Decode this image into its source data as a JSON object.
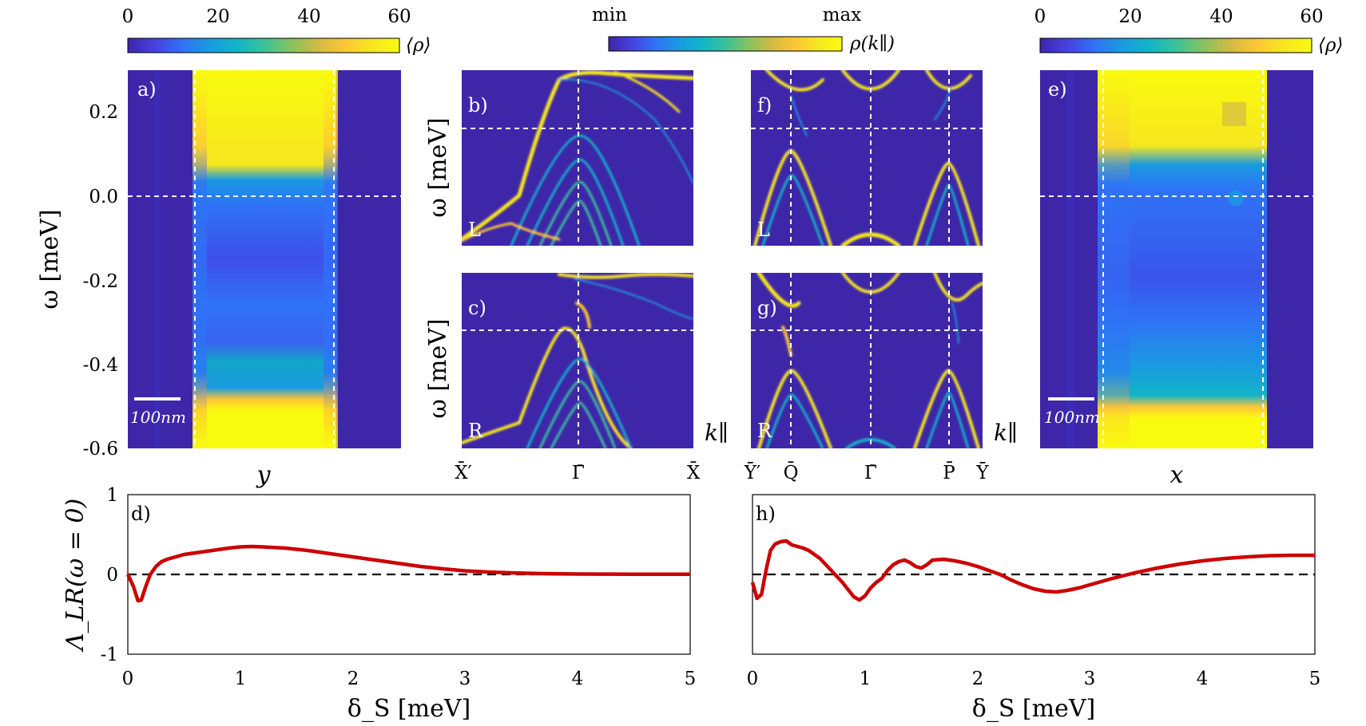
{
  "colors": {
    "parula": [
      "#3e26a8",
      "#4741e0",
      "#2f72f6",
      "#1a9ae0",
      "#12b4c8",
      "#3ac19c",
      "#86c25f",
      "#d2ba43",
      "#fec636",
      "#f6e71f",
      "#f9fb0e"
    ],
    "curve": "#cc0000",
    "guide": "#ffffff",
    "zero_line": "#000000"
  },
  "colorbars": {
    "left": {
      "ticks": [
        "0",
        "20",
        "40",
        "60"
      ],
      "label": "⟨ρ⟩"
    },
    "middle": {
      "min": "min",
      "max": "max",
      "label": "ρ(k∥)"
    },
    "right": {
      "ticks": [
        "0",
        "20",
        "40",
        "60"
      ],
      "label": "⟨ρ⟩"
    }
  },
  "panels": {
    "a": {
      "label": "a)",
      "xlabel": "y",
      "ylabel": "ω [meV]",
      "yticks": [
        "0.2",
        "0.0",
        "-0.2",
        "-0.4",
        "-0.6"
      ],
      "scalebar": "100nm"
    },
    "b": {
      "label": "b)",
      "side": "L",
      "ylabel": "ω [meV]"
    },
    "c": {
      "label": "c)",
      "side": "R",
      "ylabel": "ω [meV]",
      "kpar": "k∥",
      "xticks": [
        "X̄′",
        "Γ̄",
        "X̄"
      ]
    },
    "f": {
      "label": "f)",
      "side": "L"
    },
    "g": {
      "label": "g)",
      "side": "R",
      "kpar": "k∥",
      "xticks": [
        "Ȳ′",
        "Q̄",
        "Γ̄",
        "P̄",
        "Ȳ"
      ]
    },
    "e": {
      "label": "e)",
      "xlabel": "x",
      "scalebar": "100nm"
    },
    "d": {
      "label": "d)",
      "ylabel": "Λ_LR(ω = 0)",
      "xlabel": "δ_S [meV]",
      "yticks": [
        "1",
        "0",
        "-1"
      ],
      "xticks": [
        "0",
        "1",
        "2",
        "3",
        "4",
        "5"
      ]
    },
    "h": {
      "label": "h)",
      "xlabel": "δ_S [meV]",
      "xticks": [
        "0",
        "1",
        "2",
        "3",
        "4",
        "5"
      ]
    }
  },
  "chart_data": [
    {
      "id": "a",
      "type": "heatmap",
      "title": "a)",
      "xlabel": "y",
      "ylabel": "ω [meV]",
      "ylim": [
        -0.6,
        0.28
      ],
      "yticks": [
        0.2,
        0.0,
        -0.2,
        -0.4,
        -0.6
      ],
      "clim": [
        0,
        60
      ],
      "colorbar_label": "⟨ρ⟩",
      "guides": {
        "y_meV": 0.0,
        "x_frac": [
          0.245,
          0.755
        ]
      },
      "description": "local density of states vs y; high (saturated) above ω≈0.16 and below ω≈-0.53 meV within the junction region"
    },
    {
      "id": "b",
      "type": "heatmap",
      "title": "b)",
      "side": "L",
      "xticks": [
        "X̄′",
        "Γ̄",
        "X̄"
      ],
      "ylabel": "ω [meV]",
      "guides": {
        "y_meV": 0.0,
        "k_at": "Γ̄"
      },
      "colorbar": {
        "min": "min",
        "max": "max",
        "label": "ρ(k∥)"
      }
    },
    {
      "id": "c",
      "type": "heatmap",
      "title": "c)",
      "side": "R",
      "xticks": [
        "X̄′",
        "Γ̄",
        "X̄"
      ],
      "xlabel": "k∥",
      "ylabel": "ω [meV]",
      "guides": {
        "y_meV": 0.0,
        "k_at": "Γ̄"
      }
    },
    {
      "id": "f",
      "type": "heatmap",
      "title": "f)",
      "side": "L",
      "xticks": [
        "Ȳ′",
        "Q̄",
        "Γ̄",
        "P̄",
        "Ȳ"
      ],
      "guides": {
        "y_meV": 0.0,
        "k_at": [
          "Q̄",
          "Γ̄",
          "P̄"
        ]
      }
    },
    {
      "id": "g",
      "type": "heatmap",
      "title": "g)",
      "side": "R",
      "xticks": [
        "Ȳ′",
        "Q̄",
        "Γ̄",
        "P̄",
        "Ȳ"
      ],
      "xlabel": "k∥",
      "guides": {
        "y_meV": 0.0,
        "k_at": [
          "Q̄",
          "Γ̄",
          "P̄"
        ]
      }
    },
    {
      "id": "e",
      "type": "heatmap",
      "title": "e)",
      "xlabel": "x",
      "ylim": [
        -0.6,
        0.28
      ],
      "clim": [
        0,
        60
      ],
      "colorbar_label": "⟨ρ⟩",
      "guides": {
        "y_meV": 0.0,
        "x_frac": [
          0.23,
          0.815
        ]
      }
    },
    {
      "id": "d",
      "type": "line",
      "title": "d)",
      "xlabel": "δ_S [meV]",
      "ylabel": "Λ_LR(ω = 0)",
      "xlim": [
        0,
        5
      ],
      "ylim": [
        -1,
        1
      ],
      "reference_line": {
        "y": 0,
        "style": "dashed"
      },
      "x": [
        0,
        0.05,
        0.09,
        0.12,
        0.16,
        0.2,
        0.25,
        0.3,
        0.35,
        0.4,
        0.45,
        0.5,
        0.55,
        0.6,
        0.7,
        0.8,
        0.9,
        1.0,
        1.1,
        1.2,
        1.4,
        1.6,
        1.8,
        2.0,
        2.2,
        2.4,
        2.6,
        2.8,
        3.0,
        3.2,
        3.4,
        3.6,
        3.8,
        4.0,
        4.2,
        4.5,
        5.0
      ],
      "y": [
        0.0,
        -0.15,
        -0.33,
        -0.32,
        -0.15,
        0.0,
        0.1,
        0.16,
        0.19,
        0.21,
        0.23,
        0.25,
        0.26,
        0.27,
        0.29,
        0.31,
        0.33,
        0.345,
        0.35,
        0.345,
        0.33,
        0.3,
        0.26,
        0.22,
        0.18,
        0.14,
        0.1,
        0.07,
        0.045,
        0.03,
        0.02,
        0.012,
        0.007,
        0.005,
        0.004,
        0.003,
        0.002
      ]
    },
    {
      "id": "h",
      "type": "line",
      "title": "h)",
      "xlabel": "δ_S [meV]",
      "xlim": [
        0,
        5
      ],
      "ylim": [
        -1,
        1
      ],
      "reference_line": {
        "y": 0,
        "style": "dashed"
      },
      "x": [
        0,
        0.04,
        0.08,
        0.12,
        0.16,
        0.2,
        0.25,
        0.3,
        0.35,
        0.4,
        0.45,
        0.5,
        0.6,
        0.7,
        0.8,
        0.9,
        0.95,
        1.0,
        1.05,
        1.1,
        1.15,
        1.2,
        1.25,
        1.3,
        1.35,
        1.4,
        1.45,
        1.5,
        1.55,
        1.6,
        1.7,
        1.8,
        1.9,
        2.0,
        2.1,
        2.2,
        2.3,
        2.4,
        2.5,
        2.6,
        2.7,
        2.8,
        2.9,
        3.0,
        3.2,
        3.4,
        3.6,
        3.8,
        4.0,
        4.2,
        4.4,
        4.6,
        4.8,
        5.0
      ],
      "y": [
        -0.1,
        -0.3,
        -0.25,
        0.05,
        0.3,
        0.38,
        0.41,
        0.42,
        0.37,
        0.35,
        0.33,
        0.3,
        0.2,
        0.05,
        -0.1,
        -0.28,
        -0.32,
        -0.27,
        -0.17,
        -0.1,
        -0.05,
        0.05,
        0.12,
        0.16,
        0.18,
        0.15,
        0.1,
        0.08,
        0.12,
        0.18,
        0.19,
        0.17,
        0.14,
        0.1,
        0.05,
        0.0,
        -0.07,
        -0.13,
        -0.18,
        -0.21,
        -0.22,
        -0.2,
        -0.17,
        -0.13,
        -0.05,
        0.02,
        0.08,
        0.13,
        0.17,
        0.2,
        0.22,
        0.235,
        0.24,
        0.24
      ]
    }
  ]
}
